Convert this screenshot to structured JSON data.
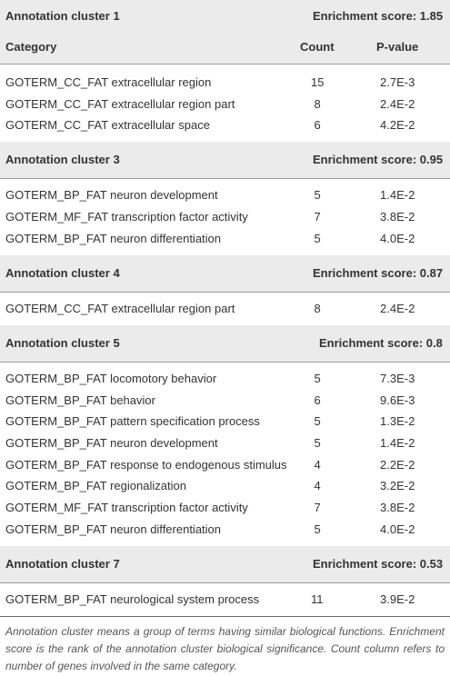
{
  "header": {
    "category": "Category",
    "count": "Count",
    "pvalue": "P-value"
  },
  "clusters": [
    {
      "title": "Annotation cluster 1",
      "score": "Enrichment score: 1.85",
      "rows": [
        [
          "GOTERM_CC_FAT extracellular region",
          15,
          "2.7E-3"
        ],
        [
          "GOTERM_CC_FAT extracellular region part",
          8,
          "2.4E-2"
        ],
        [
          "GOTERM_CC_FAT extracellular space",
          6,
          "4.2E-2"
        ]
      ]
    },
    {
      "title": "Annotation cluster 3",
      "score": "Enrichment score: 0.95",
      "rows": [
        [
          "GOTERM_BP_FAT neuron development",
          5,
          "1.4E-2"
        ],
        [
          "GOTERM_MF_FAT transcription factor activity",
          7,
          "3.8E-2"
        ],
        [
          "GOTERM_BP_FAT neuron differentiation",
          5,
          "4.0E-2"
        ]
      ]
    },
    {
      "title": "Annotation cluster 4",
      "score": "Enrichment score: 0.87",
      "rows": [
        [
          "GOTERM_CC_FAT extracellular region part",
          8,
          "2.4E-2"
        ]
      ]
    },
    {
      "title": "Annotation cluster 5",
      "score": "Enrichment score: 0.8",
      "rows": [
        [
          "GOTERM_BP_FAT locomotory behavior",
          5,
          "7.3E-3"
        ],
        [
          "GOTERM_BP_FAT behavior",
          6,
          "9.6E-3"
        ],
        [
          "GOTERM_BP_FAT pattern specification process",
          5,
          "1.3E-2"
        ],
        [
          "GOTERM_BP_FAT neuron development",
          5,
          "1.4E-2"
        ],
        [
          "GOTERM_BP_FAT response to endogenous stimulus",
          4,
          "2.2E-2"
        ],
        [
          "GOTERM_BP_FAT regionalization",
          4,
          "3.2E-2"
        ],
        [
          "GOTERM_MF_FAT transcription factor activity",
          7,
          "3.8E-2"
        ],
        [
          "GOTERM_BP_FAT neuron differentiation",
          5,
          "4.0E-2"
        ]
      ]
    },
    {
      "title": "Annotation cluster 7",
      "score": "Enrichment score: 0.53",
      "rows": [
        [
          "GOTERM_BP_FAT neurological system process",
          11,
          "3.9E-2"
        ]
      ]
    }
  ],
  "footnote": "Annotation cluster means a group of terms having similar biological functions. Enrichment score is the rank of the annotation cluster biological significance. Count column refers to number of genes involved in the same category."
}
